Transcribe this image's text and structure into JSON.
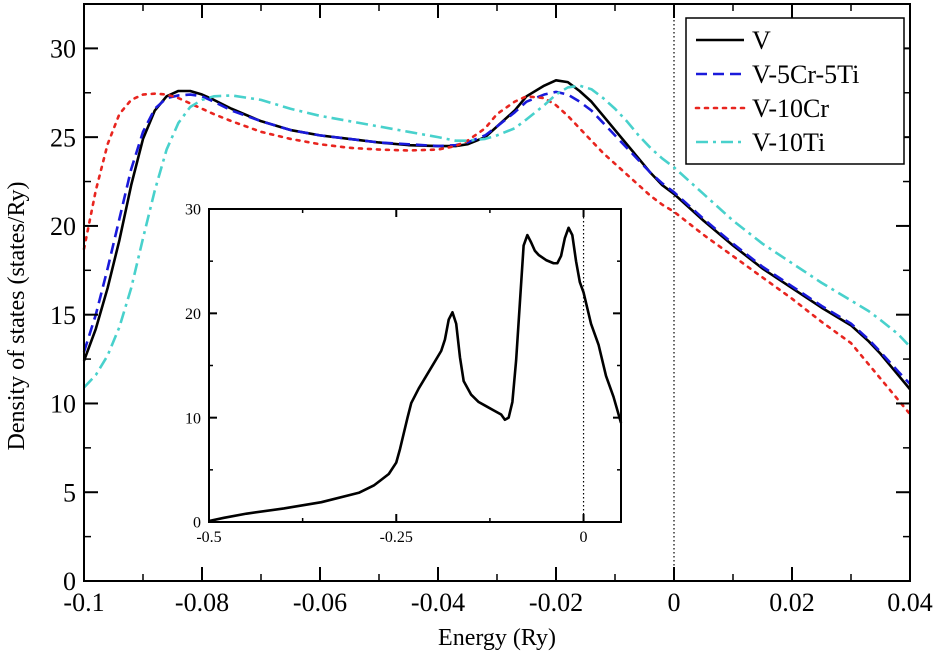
{
  "chart_data": [
    {
      "type": "line",
      "role": "main",
      "title": "",
      "xlabel": "Energy (Ry)",
      "ylabel": "Density of states (states/Ry)",
      "xlim": [
        -0.1,
        0.04
      ],
      "ylim": [
        0,
        32.5
      ],
      "x_ticks": [
        -0.1,
        -0.08,
        -0.06,
        -0.04,
        -0.02,
        0,
        0.02,
        0.04
      ],
      "x_tick_labels": [
        "-0.1",
        "-0.08",
        "-0.06",
        "-0.04",
        "-0.02",
        "0",
        "0.02",
        "0.04"
      ],
      "y_ticks": [
        0,
        5,
        10,
        15,
        20,
        25,
        30
      ],
      "y_tick_labels": [
        "0",
        "5",
        "10",
        "15",
        "20",
        "25",
        "30"
      ],
      "grid": false,
      "legend_position": "top-right",
      "fermi_level_x": 0,
      "series": [
        {
          "name": "V",
          "color": "#000000",
          "style": "solid",
          "x": [
            -0.1,
            -0.098,
            -0.096,
            -0.094,
            -0.092,
            -0.09,
            -0.088,
            -0.086,
            -0.084,
            -0.082,
            -0.08,
            -0.078,
            -0.075,
            -0.07,
            -0.065,
            -0.06,
            -0.055,
            -0.05,
            -0.045,
            -0.04,
            -0.037,
            -0.035,
            -0.032,
            -0.03,
            -0.027,
            -0.025,
            -0.022,
            -0.02,
            -0.018,
            -0.016,
            -0.014,
            -0.012,
            -0.01,
            -0.008,
            -0.006,
            -0.004,
            -0.002,
            0,
            0.005,
            0.01,
            0.015,
            0.02,
            0.025,
            0.03,
            0.033,
            0.035,
            0.038,
            0.04
          ],
          "y": [
            12.4,
            14.2,
            16.5,
            19.2,
            22.3,
            24.9,
            26.5,
            27.3,
            27.6,
            27.6,
            27.4,
            27.1,
            26.6,
            25.9,
            25.4,
            25.1,
            24.9,
            24.7,
            24.55,
            24.5,
            24.5,
            24.6,
            25.0,
            25.6,
            26.5,
            27.3,
            27.9,
            28.2,
            28.1,
            27.6,
            27.0,
            26.2,
            25.4,
            24.6,
            23.8,
            23.0,
            22.3,
            21.8,
            20.3,
            18.9,
            17.6,
            16.5,
            15.4,
            14.4,
            13.5,
            12.8,
            11.6,
            10.8
          ]
        },
        {
          "name": "V-5Cr-5Ti",
          "color": "#1a1adb",
          "style": "dashed",
          "x": [
            -0.1,
            -0.098,
            -0.096,
            -0.094,
            -0.092,
            -0.09,
            -0.088,
            -0.086,
            -0.084,
            -0.082,
            -0.08,
            -0.078,
            -0.075,
            -0.07,
            -0.065,
            -0.06,
            -0.055,
            -0.05,
            -0.045,
            -0.04,
            -0.037,
            -0.035,
            -0.032,
            -0.03,
            -0.027,
            -0.025,
            -0.022,
            -0.02,
            -0.018,
            -0.016,
            -0.014,
            -0.012,
            -0.01,
            -0.008,
            -0.006,
            -0.004,
            -0.002,
            0,
            0.005,
            0.01,
            0.015,
            0.02,
            0.025,
            0.03,
            0.033,
            0.035,
            0.038,
            0.04
          ],
          "y": [
            12.9,
            15.0,
            17.6,
            20.4,
            23.2,
            25.3,
            26.6,
            27.2,
            27.35,
            27.4,
            27.3,
            27.0,
            26.5,
            25.9,
            25.4,
            25.1,
            24.9,
            24.7,
            24.6,
            24.5,
            24.55,
            24.7,
            25.1,
            25.6,
            26.4,
            27.0,
            27.4,
            27.55,
            27.4,
            27.0,
            26.5,
            25.8,
            25.1,
            24.4,
            23.7,
            23.0,
            22.4,
            21.9,
            20.4,
            19.0,
            17.7,
            16.6,
            15.5,
            14.5,
            13.6,
            12.9,
            11.8,
            11.1
          ]
        },
        {
          "name": "V-10Cr",
          "color": "#e8251f",
          "style": "dotted",
          "x": [
            -0.1,
            -0.098,
            -0.096,
            -0.094,
            -0.092,
            -0.09,
            -0.088,
            -0.086,
            -0.084,
            -0.082,
            -0.08,
            -0.078,
            -0.075,
            -0.07,
            -0.065,
            -0.06,
            -0.055,
            -0.05,
            -0.045,
            -0.04,
            -0.037,
            -0.035,
            -0.032,
            -0.03,
            -0.027,
            -0.025,
            -0.022,
            -0.02,
            -0.018,
            -0.016,
            -0.014,
            -0.012,
            -0.01,
            -0.008,
            -0.006,
            -0.004,
            -0.002,
            0,
            0.005,
            0.01,
            0.015,
            0.02,
            0.025,
            0.03,
            0.033,
            0.035,
            0.038,
            0.04
          ],
          "y": [
            18.7,
            22.0,
            24.6,
            26.3,
            27.1,
            27.4,
            27.45,
            27.4,
            27.2,
            26.9,
            26.6,
            26.3,
            25.9,
            25.3,
            24.9,
            24.6,
            24.4,
            24.3,
            24.25,
            24.3,
            24.5,
            24.8,
            25.5,
            26.3,
            27.0,
            27.3,
            27.2,
            26.8,
            26.2,
            25.5,
            24.8,
            24.1,
            23.5,
            22.9,
            22.3,
            21.7,
            21.2,
            20.8,
            19.5,
            18.3,
            17.1,
            15.9,
            14.6,
            13.4,
            12.2,
            11.4,
            10.2,
            9.4
          ]
        },
        {
          "name": "V-10Ti",
          "color": "#48d1cc",
          "style": "dashdot",
          "x": [
            -0.1,
            -0.098,
            -0.096,
            -0.094,
            -0.092,
            -0.09,
            -0.088,
            -0.086,
            -0.084,
            -0.082,
            -0.08,
            -0.078,
            -0.075,
            -0.07,
            -0.065,
            -0.06,
            -0.055,
            -0.05,
            -0.045,
            -0.04,
            -0.037,
            -0.035,
            -0.032,
            -0.03,
            -0.027,
            -0.025,
            -0.022,
            -0.02,
            -0.018,
            -0.016,
            -0.014,
            -0.012,
            -0.01,
            -0.008,
            -0.006,
            -0.004,
            -0.002,
            0,
            0.005,
            0.01,
            0.015,
            0.02,
            0.025,
            0.03,
            0.033,
            0.035,
            0.038,
            0.04
          ],
          "y": [
            10.9,
            11.6,
            12.7,
            14.3,
            16.5,
            19.3,
            22.0,
            24.3,
            25.8,
            26.7,
            27.1,
            27.3,
            27.35,
            27.1,
            26.6,
            26.2,
            25.9,
            25.6,
            25.3,
            25.0,
            24.8,
            24.8,
            24.9,
            25.1,
            25.5,
            26.0,
            26.8,
            27.4,
            27.8,
            27.9,
            27.7,
            27.2,
            26.6,
            25.9,
            25.1,
            24.4,
            23.8,
            23.3,
            21.8,
            20.3,
            19.0,
            17.9,
            16.8,
            15.8,
            15.2,
            14.7,
            13.9,
            13.2
          ]
        }
      ]
    },
    {
      "type": "line",
      "role": "inset",
      "title": "",
      "xlabel": "",
      "ylabel": "",
      "xlim": [
        -0.5,
        0.05
      ],
      "ylim": [
        0,
        30
      ],
      "x_ticks": [
        -0.5,
        -0.25,
        0
      ],
      "x_tick_labels": [
        "-0.5",
        "-0.25",
        "0"
      ],
      "y_ticks": [
        0,
        10,
        20,
        30
      ],
      "y_tick_labels": [
        "0",
        "10",
        "20",
        "30"
      ],
      "grid": false,
      "fermi_level_x": 0,
      "series": [
        {
          "name": "V",
          "color": "#000000",
          "style": "solid",
          "x": [
            -0.5,
            -0.48,
            -0.45,
            -0.4,
            -0.35,
            -0.3,
            -0.28,
            -0.26,
            -0.25,
            -0.245,
            -0.24,
            -0.235,
            -0.23,
            -0.22,
            -0.21,
            -0.2,
            -0.19,
            -0.185,
            -0.18,
            -0.175,
            -0.17,
            -0.165,
            -0.16,
            -0.15,
            -0.14,
            -0.13,
            -0.12,
            -0.11,
            -0.105,
            -0.1,
            -0.095,
            -0.09,
            -0.085,
            -0.08,
            -0.075,
            -0.07,
            -0.065,
            -0.06,
            -0.05,
            -0.04,
            -0.035,
            -0.03,
            -0.025,
            -0.02,
            -0.015,
            -0.01,
            -0.005,
            0,
            0.01,
            0.02,
            0.03,
            0.04,
            0.05
          ],
          "y": [
            0.1,
            0.4,
            0.8,
            1.3,
            1.9,
            2.8,
            3.5,
            4.6,
            5.7,
            7.0,
            8.5,
            10.0,
            11.4,
            12.8,
            14.0,
            15.2,
            16.4,
            17.5,
            19.4,
            20.1,
            19.0,
            15.8,
            13.5,
            12.2,
            11.5,
            11.1,
            10.7,
            10.3,
            9.8,
            10.0,
            11.5,
            15.5,
            21.0,
            26.5,
            27.5,
            26.8,
            26.0,
            25.6,
            25.1,
            24.8,
            24.8,
            25.5,
            27.2,
            28.2,
            27.5,
            25.0,
            23.0,
            22.0,
            19.0,
            17.0,
            14.0,
            12.0,
            9.5
          ]
        }
      ]
    }
  ]
}
